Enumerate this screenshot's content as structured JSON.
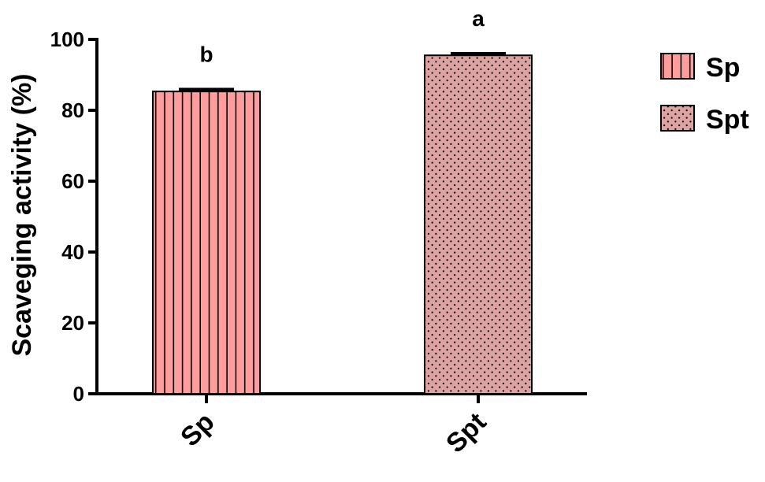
{
  "chart_data": {
    "type": "bar",
    "ylabel": "Scaveging activity (%)",
    "xlabel": "",
    "categories": [
      "Sp",
      "Spt"
    ],
    "values": [
      85.3,
      95.5
    ],
    "errors": [
      0.6,
      0.5
    ],
    "significance": [
      "b",
      "a"
    ],
    "ylim": [
      0,
      100
    ],
    "yticks": [
      0,
      20,
      40,
      60,
      80,
      100
    ],
    "legend": {
      "placement": "top-right",
      "entries": [
        "Sp",
        "Spt"
      ]
    },
    "series_styles": [
      {
        "name": "Sp",
        "fill": "#ff9d9d",
        "pattern": "vertical-stripes"
      },
      {
        "name": "Spt",
        "fill": "#dda3a3",
        "pattern": "dots"
      }
    ],
    "grid": false
  }
}
